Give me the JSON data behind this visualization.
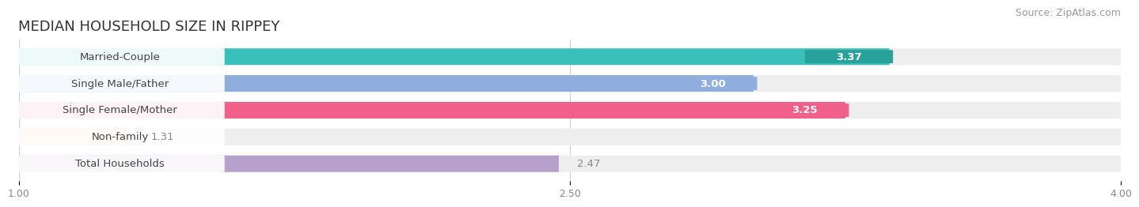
{
  "title": "MEDIAN HOUSEHOLD SIZE IN RIPPEY",
  "source": "Source: ZipAtlas.com",
  "categories": [
    "Married-Couple",
    "Single Male/Father",
    "Single Female/Mother",
    "Non-family",
    "Total Households"
  ],
  "values": [
    3.37,
    3.0,
    3.25,
    1.31,
    2.47
  ],
  "bar_colors": [
    "#3bbfba",
    "#90aedd",
    "#f0608a",
    "#f5c99a",
    "#b8a0cc"
  ],
  "xlim": [
    1.0,
    4.0
  ],
  "xticks": [
    1.0,
    2.5,
    4.0
  ],
  "xticklabels": [
    "1.00",
    "2.50",
    "4.00"
  ],
  "background_color": "#ffffff",
  "bar_bg_color": "#eeeeee",
  "title_fontsize": 13,
  "source_fontsize": 9,
  "label_fontsize": 9.5,
  "value_fontsize": 9.5,
  "value_inside_color": "white",
  "value_outside_color": "#888888"
}
